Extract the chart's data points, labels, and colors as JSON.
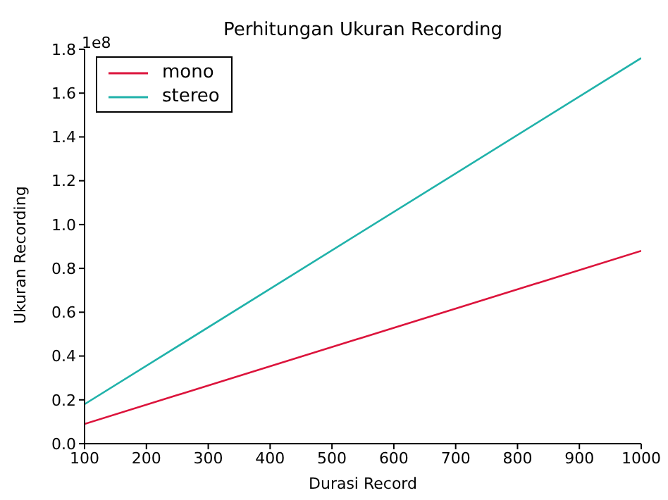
{
  "chart_data": {
    "type": "line",
    "title": "Perhitungan Ukuran Recording",
    "xlabel": "Durasi Record",
    "ylabel": "Ukuran Recording",
    "annotations": [
      "1e8"
    ],
    "x": [
      100,
      1000
    ],
    "series": [
      {
        "name": "mono",
        "color": "#dc143c",
        "values": [
          0.09,
          0.88
        ]
      },
      {
        "name": "stereo",
        "color": "#20b2aa",
        "values": [
          0.18,
          1.76
        ]
      }
    ],
    "xlim": [
      100,
      1000
    ],
    "xticks": [
      100,
      200,
      300,
      400,
      500,
      600,
      700,
      800,
      900,
      1000
    ],
    "ylim": [
      0,
      1.8
    ],
    "yticks": [
      {
        "value": 0,
        "label": "0.0"
      },
      {
        "value": 0.2,
        "label": "0.2"
      },
      {
        "value": 0.4,
        "label": "0.4"
      },
      {
        "value": 0.6,
        "label": "0.6"
      },
      {
        "value": 0.8,
        "label": "0.8"
      },
      {
        "value": 1.0,
        "label": "1.0"
      },
      {
        "value": 1.2,
        "label": "1.2"
      },
      {
        "value": 1.4,
        "label": "1.4"
      },
      {
        "value": 1.6,
        "label": "1.6"
      },
      {
        "value": 1.8,
        "label": "1.8"
      }
    ],
    "grid": false,
    "legend": "top left",
    "marker": "none",
    "line_style": "solid"
  }
}
